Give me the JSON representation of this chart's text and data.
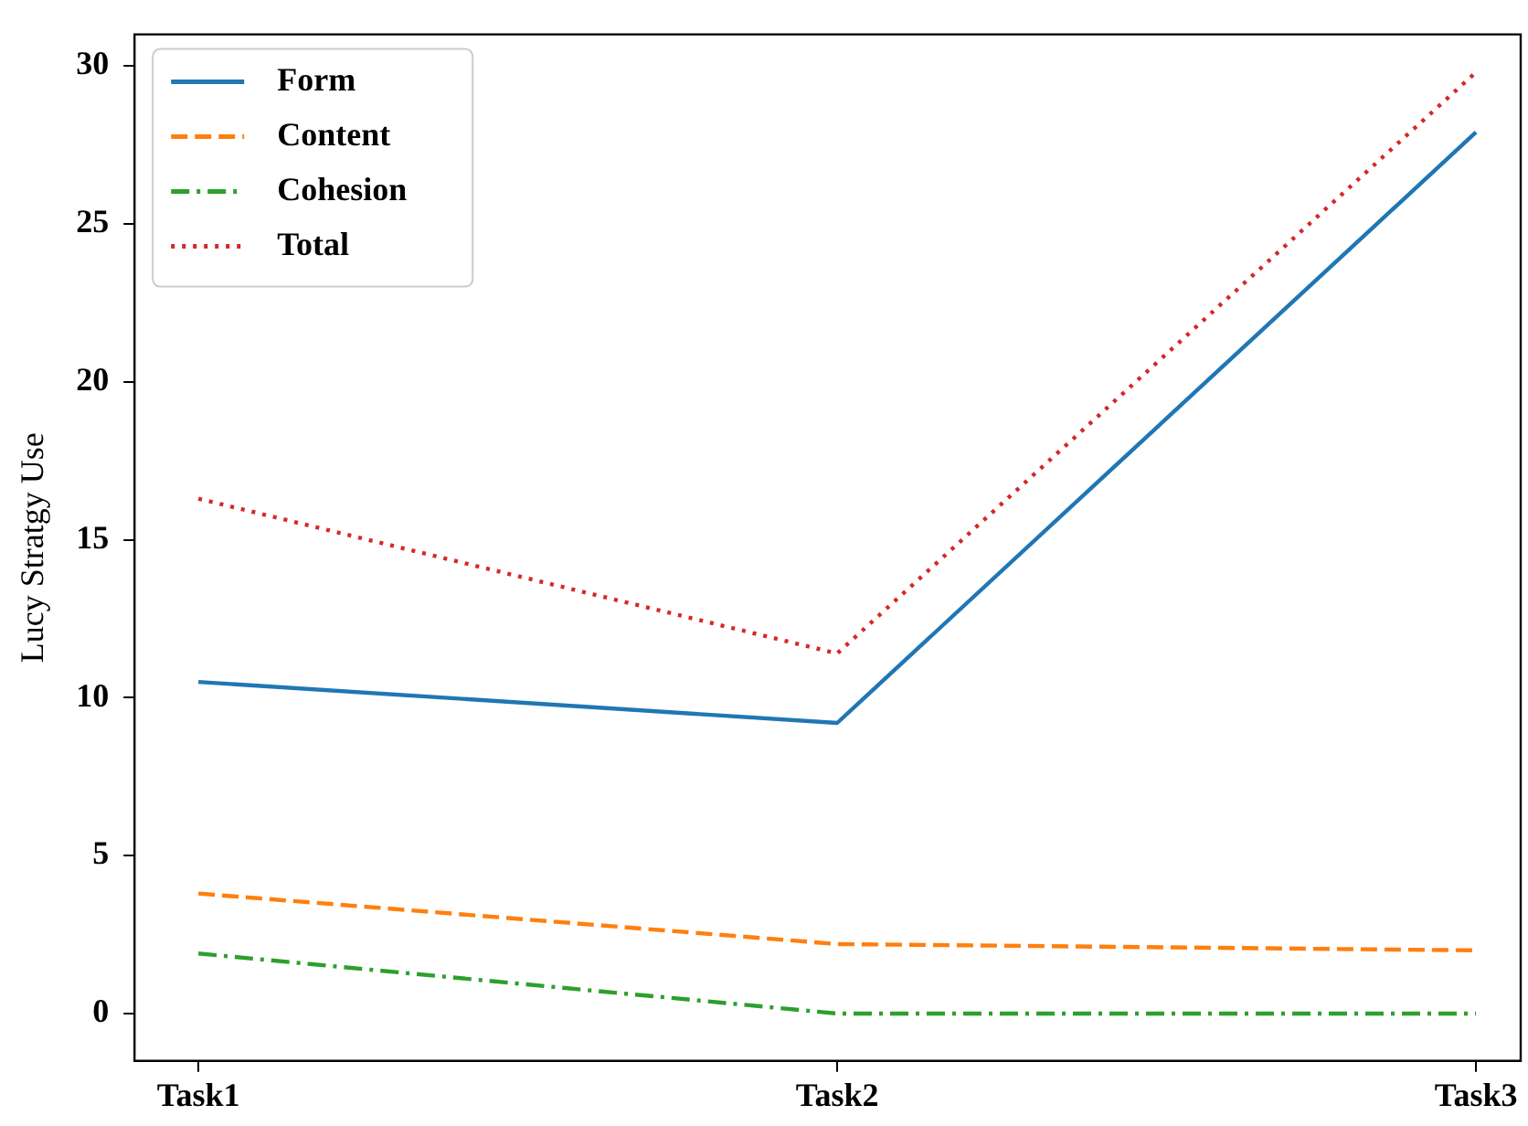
{
  "chart_data": {
    "type": "line",
    "ylabel": "Lucy Stratgy Use",
    "categories": [
      "Task1",
      "Task2",
      "Task3"
    ],
    "ylim": [
      -1.5,
      31
    ],
    "yticks": [
      0,
      5,
      10,
      15,
      20,
      25,
      30
    ],
    "grid": false,
    "legend": "top left",
    "marker": "none",
    "series": [
      {
        "name": "Form",
        "color": "#1f77b4",
        "line_style": "solid",
        "values": [
          10.5,
          9.2,
          27.9
        ]
      },
      {
        "name": "Content",
        "color": "#ff7f0e",
        "line_style": "dashed",
        "values": [
          3.8,
          2.2,
          2.0
        ]
      },
      {
        "name": "Cohesion",
        "color": "#2ca02c",
        "line_style": "dashdot",
        "values": [
          1.9,
          0,
          0
        ]
      },
      {
        "name": "Total",
        "color": "#d62728",
        "line_style": "dotted",
        "values": [
          16.3,
          11.4,
          29.8
        ]
      }
    ]
  }
}
